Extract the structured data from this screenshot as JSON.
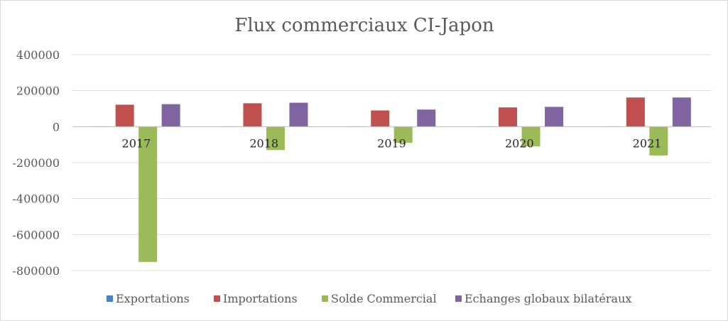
{
  "chart_data": {
    "type": "bar",
    "title": "Flux commerciaux CI-Japon",
    "xlabel": "",
    "ylabel": "",
    "categories": [
      "2017",
      "2018",
      "2019",
      "2020",
      "2021"
    ],
    "series": [
      {
        "name": "Exportations",
        "color": "#4f81bd",
        "values": [
          500,
          600,
          400,
          500,
          700
        ]
      },
      {
        "name": "Importations",
        "color": "#c0504d",
        "values": [
          122000,
          130000,
          90000,
          107000,
          162000
        ]
      },
      {
        "name": "Solde Commercial",
        "color": "#9bbb59",
        "values": [
          -752000,
          -130000,
          -90000,
          -110000,
          -160000
        ]
      },
      {
        "name": "Echanges globaux bilatéraux",
        "color": "#8064a2",
        "values": [
          125000,
          133000,
          95000,
          110000,
          162000
        ]
      }
    ],
    "ylim": [
      -800000,
      400000
    ],
    "yticks": [
      400000,
      200000,
      0,
      -200000,
      -400000,
      -600000,
      -800000
    ],
    "ytick_labels": [
      "400000",
      "200000",
      "0",
      "-200000",
      "-400000",
      "-600000",
      "-800000"
    ],
    "grid": true,
    "legend_position": "bottom"
  }
}
